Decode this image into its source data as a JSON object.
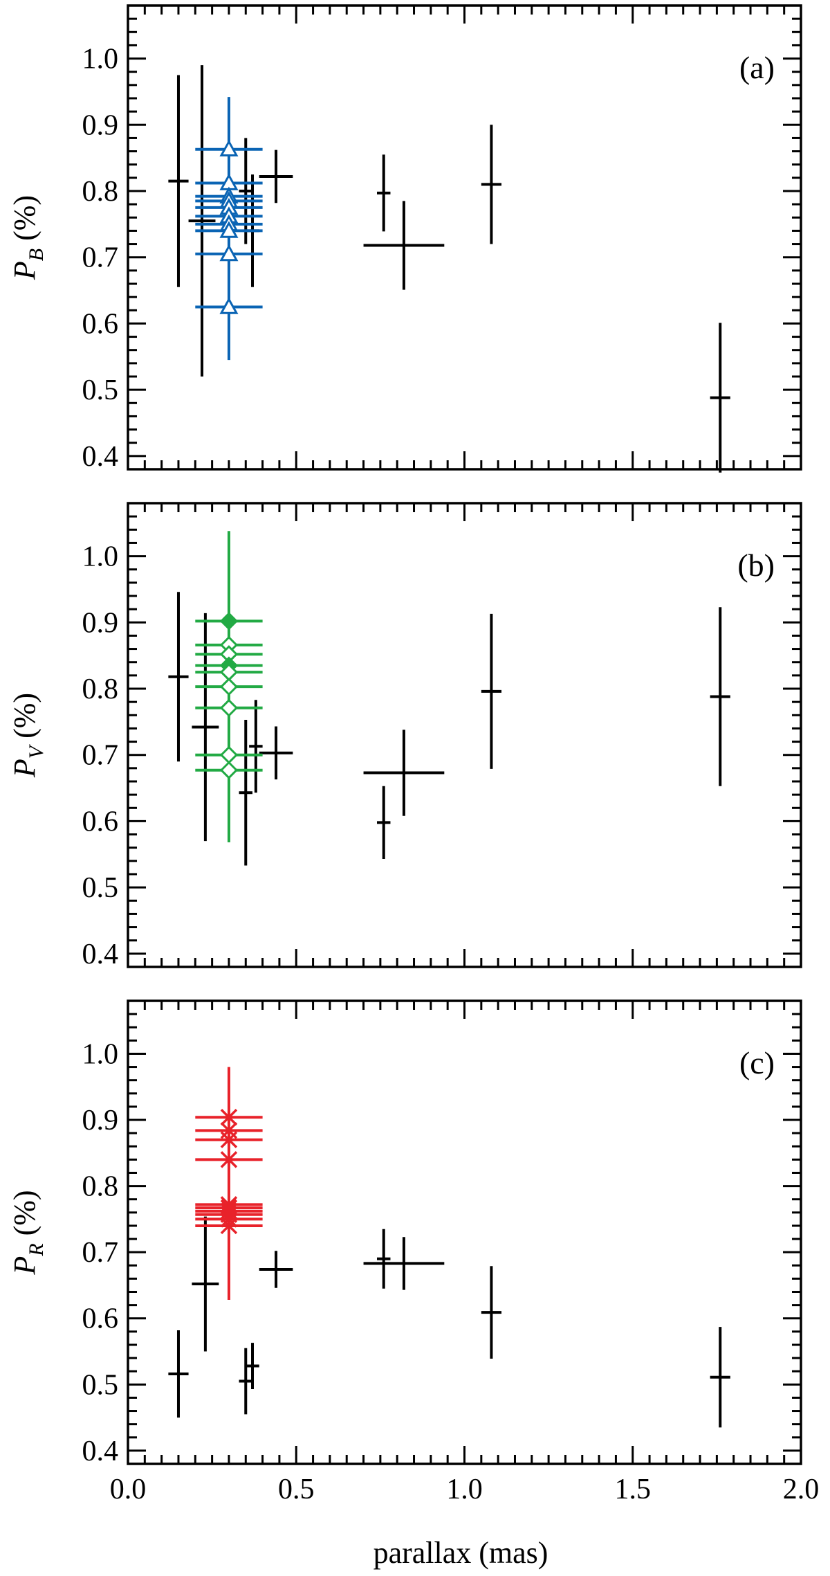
{
  "figure": {
    "xlabel": "parallax (mas)",
    "x_ticks": [
      "0.0",
      "0.5",
      "1.0",
      "1.5",
      "2.0"
    ],
    "y_ticks": [
      "0.4",
      "0.5",
      "0.6",
      "0.7",
      "0.8",
      "0.9",
      "1.0"
    ]
  },
  "chart_data": [
    {
      "type": "scatter",
      "panel_label": "(a)",
      "ylabel_main": "P",
      "ylabel_sub": "B",
      "ylabel_unit": " (%)",
      "xlim": [
        0.0,
        2.0
      ],
      "ylim": [
        0.38,
        1.08
      ],
      "series": [
        {
          "color": "#000000",
          "marker": "none",
          "points": [
            {
              "x": 0.15,
              "y": 0.815,
              "yerr": 0.16,
              "xerr": 0.03
            },
            {
              "x": 0.22,
              "y": 0.755,
              "yerr": 0.235,
              "xerr": 0.04
            },
            {
              "x": 0.35,
              "y": 0.8,
              "yerr": 0.08,
              "xerr": 0.02
            },
            {
              "x": 0.37,
              "y": 0.74,
              "yerr": 0.085,
              "xerr": 0.02
            },
            {
              "x": 0.44,
              "y": 0.822,
              "yerr": 0.04,
              "xerr": 0.05
            },
            {
              "x": 0.76,
              "y": 0.797,
              "yerr": 0.058,
              "xerr": 0.02
            },
            {
              "x": 0.82,
              "y": 0.718,
              "yerr": 0.067,
              "xerr": 0.12
            },
            {
              "x": 1.08,
              "y": 0.81,
              "yerr": 0.09,
              "xerr": 0.03
            },
            {
              "x": 1.76,
              "y": 0.488,
              "yerr": 0.113,
              "xerr": 0.03
            }
          ]
        },
        {
          "color": "#0a64b4",
          "marker": "triangle-open",
          "points": [
            {
              "x": 0.3,
              "y": 0.863,
              "xerr": 0.1
            },
            {
              "x": 0.3,
              "y": 0.812,
              "xerr": 0.1
            },
            {
              "x": 0.3,
              "y": 0.792,
              "xerr": 0.1
            },
            {
              "x": 0.3,
              "y": 0.785,
              "xerr": 0.1
            },
            {
              "x": 0.3,
              "y": 0.775,
              "xerr": 0.1
            },
            {
              "x": 0.3,
              "y": 0.762,
              "xerr": 0.1
            },
            {
              "x": 0.3,
              "y": 0.75,
              "xerr": 0.1
            },
            {
              "x": 0.3,
              "y": 0.74,
              "xerr": 0.1
            },
            {
              "x": 0.3,
              "y": 0.705,
              "xerr": 0.1
            },
            {
              "x": 0.3,
              "y": 0.625,
              "xerr": 0.1
            }
          ],
          "vertical_bar": [
            0.545,
            0.942
          ]
        }
      ]
    },
    {
      "type": "scatter",
      "panel_label": "(b)",
      "ylabel_main": "P",
      "ylabel_sub": "V",
      "ylabel_unit": " (%)",
      "xlim": [
        0.0,
        2.0
      ],
      "ylim": [
        0.38,
        1.08
      ],
      "series": [
        {
          "color": "#000000",
          "marker": "none",
          "points": [
            {
              "x": 0.15,
              "y": 0.818,
              "yerr": 0.128,
              "xerr": 0.03
            },
            {
              "x": 0.23,
              "y": 0.742,
              "yerr": 0.172,
              "xerr": 0.04
            },
            {
              "x": 0.35,
              "y": 0.643,
              "yerr": 0.11,
              "xerr": 0.02
            },
            {
              "x": 0.38,
              "y": 0.713,
              "yerr": 0.07,
              "xerr": 0.02
            },
            {
              "x": 0.44,
              "y": 0.703,
              "yerr": 0.04,
              "xerr": 0.05
            },
            {
              "x": 0.76,
              "y": 0.598,
              "yerr": 0.055,
              "xerr": 0.02
            },
            {
              "x": 0.82,
              "y": 0.673,
              "yerr": 0.065,
              "xerr": 0.12
            },
            {
              "x": 1.08,
              "y": 0.796,
              "yerr": 0.117,
              "xerr": 0.03
            },
            {
              "x": 1.76,
              "y": 0.788,
              "yerr": 0.135,
              "xerr": 0.03
            }
          ]
        },
        {
          "color": "#22aa44",
          "marker": "diamond",
          "points": [
            {
              "x": 0.3,
              "y": 0.902,
              "xerr": 0.1,
              "filled": true
            },
            {
              "x": 0.3,
              "y": 0.866,
              "xerr": 0.1
            },
            {
              "x": 0.3,
              "y": 0.852,
              "xerr": 0.1
            },
            {
              "x": 0.3,
              "y": 0.835,
              "xerr": 0.1,
              "filled": true
            },
            {
              "x": 0.3,
              "y": 0.825,
              "xerr": 0.1
            },
            {
              "x": 0.3,
              "y": 0.803,
              "xerr": 0.1
            },
            {
              "x": 0.3,
              "y": 0.771,
              "xerr": 0.1
            },
            {
              "x": 0.3,
              "y": 0.7,
              "xerr": 0.1
            },
            {
              "x": 0.3,
              "y": 0.677,
              "xerr": 0.1
            }
          ],
          "vertical_bar": [
            0.568,
            1.038
          ]
        }
      ]
    },
    {
      "type": "scatter",
      "panel_label": "(c)",
      "ylabel_main": "P",
      "ylabel_sub": "R",
      "ylabel_unit": " (%)",
      "xlim": [
        0.0,
        2.0
      ],
      "ylim": [
        0.38,
        1.08
      ],
      "series": [
        {
          "color": "#000000",
          "marker": "none",
          "points": [
            {
              "x": 0.15,
              "y": 0.516,
              "yerr": 0.066,
              "xerr": 0.03
            },
            {
              "x": 0.23,
              "y": 0.652,
              "yerr": 0.102,
              "xerr": 0.04
            },
            {
              "x": 0.35,
              "y": 0.505,
              "yerr": 0.05,
              "xerr": 0.02
            },
            {
              "x": 0.37,
              "y": 0.528,
              "yerr": 0.035,
              "xerr": 0.02
            },
            {
              "x": 0.44,
              "y": 0.674,
              "yerr": 0.028,
              "xerr": 0.05
            },
            {
              "x": 0.76,
              "y": 0.69,
              "yerr": 0.045,
              "xerr": 0.02
            },
            {
              "x": 0.82,
              "y": 0.683,
              "yerr": 0.04,
              "xerr": 0.12
            },
            {
              "x": 1.08,
              "y": 0.609,
              "yerr": 0.07,
              "xerr": 0.03
            },
            {
              "x": 1.76,
              "y": 0.511,
              "yerr": 0.076,
              "xerr": 0.03
            }
          ]
        },
        {
          "color": "#e8222a",
          "marker": "x",
          "points": [
            {
              "x": 0.3,
              "y": 0.904,
              "xerr": 0.1
            },
            {
              "x": 0.3,
              "y": 0.884,
              "xerr": 0.1
            },
            {
              "x": 0.3,
              "y": 0.87,
              "xerr": 0.1
            },
            {
              "x": 0.3,
              "y": 0.84,
              "xerr": 0.1
            },
            {
              "x": 0.3,
              "y": 0.772,
              "xerr": 0.1
            },
            {
              "x": 0.3,
              "y": 0.767,
              "xerr": 0.1
            },
            {
              "x": 0.3,
              "y": 0.762,
              "xerr": 0.1
            },
            {
              "x": 0.3,
              "y": 0.757,
              "xerr": 0.1
            },
            {
              "x": 0.3,
              "y": 0.75,
              "xerr": 0.1
            },
            {
              "x": 0.3,
              "y": 0.74,
              "xerr": 0.1
            }
          ],
          "vertical_bar": [
            0.628,
            0.98
          ]
        }
      ]
    }
  ]
}
